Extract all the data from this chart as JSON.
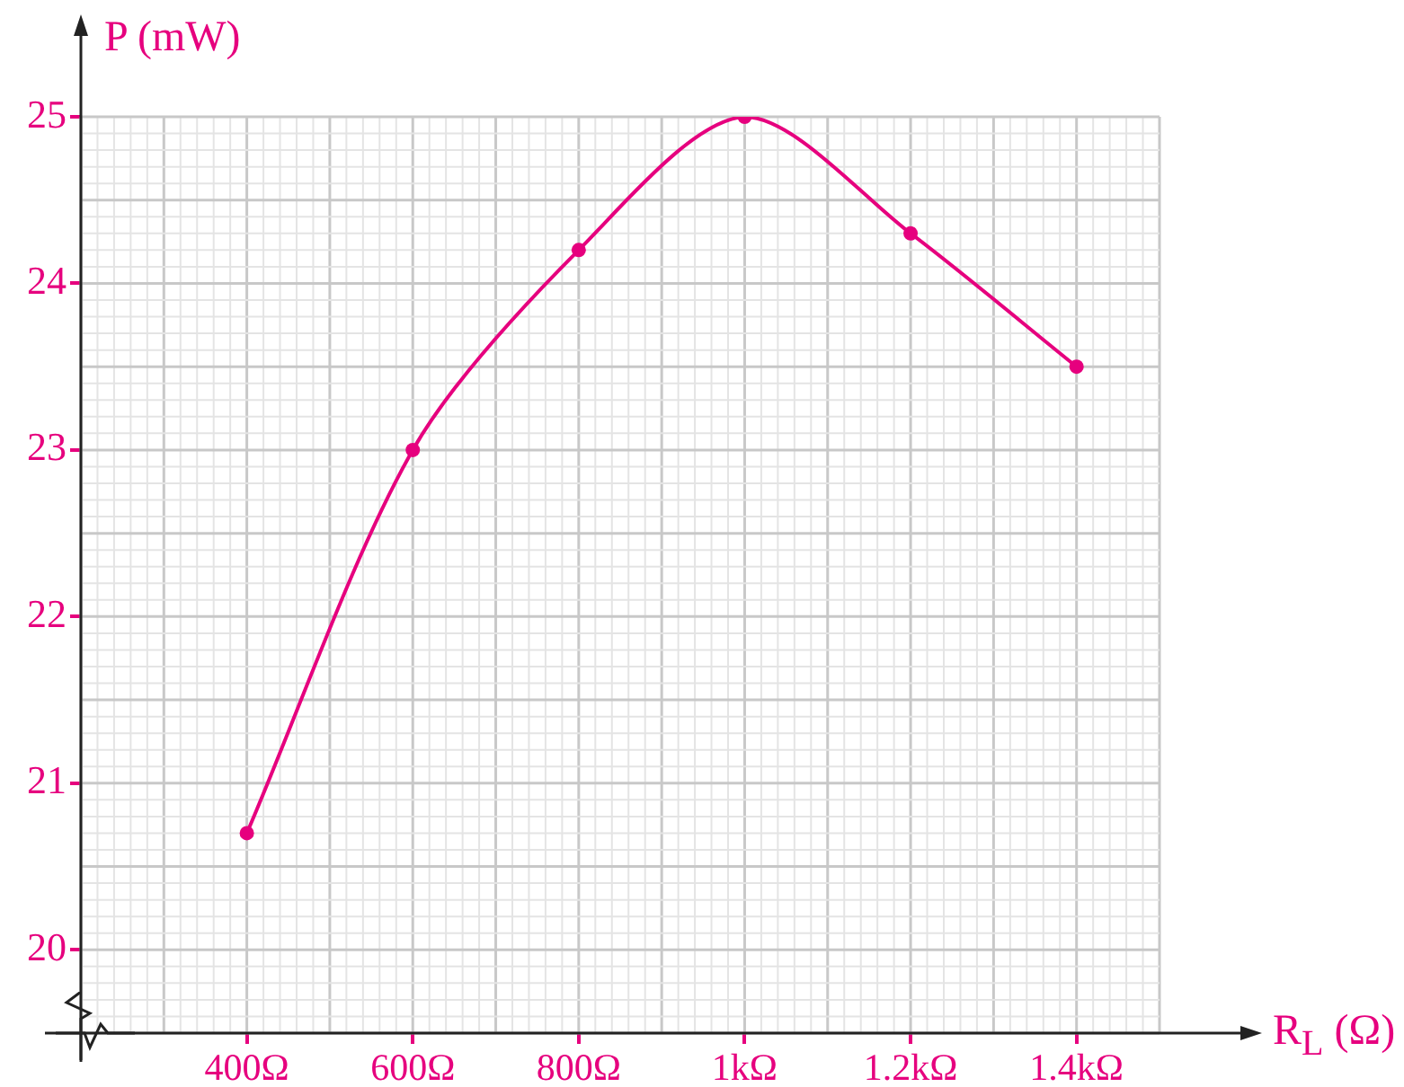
{
  "chart_data": {
    "type": "line",
    "xlabel": "R$_{L}$ (Ω)",
    "ylabel": "P (mW)",
    "x": [
      400,
      600,
      800,
      1000,
      1200,
      1400
    ],
    "series": [
      {
        "color": "#e6007e",
        "values": [
          20.7,
          23,
          24.2,
          25,
          24.3,
          23.5
        ]
      }
    ],
    "xlim": [
      200,
      1500
    ],
    "ylim": [
      19.5,
      25
    ],
    "xticks": [
      {
        "value": 400,
        "label": "400Ω"
      },
      {
        "value": 600,
        "label": "600Ω"
      },
      {
        "value": 800,
        "label": "800Ω"
      },
      {
        "value": 1000,
        "label": "1kΩ"
      },
      {
        "value": 1200,
        "label": "1.2kΩ"
      },
      {
        "value": 1400,
        "label": "1.4kΩ"
      }
    ],
    "yticks": [
      20,
      21,
      22,
      23,
      24,
      25
    ],
    "grid": true,
    "marker": "circle",
    "line_style": "solid"
  }
}
